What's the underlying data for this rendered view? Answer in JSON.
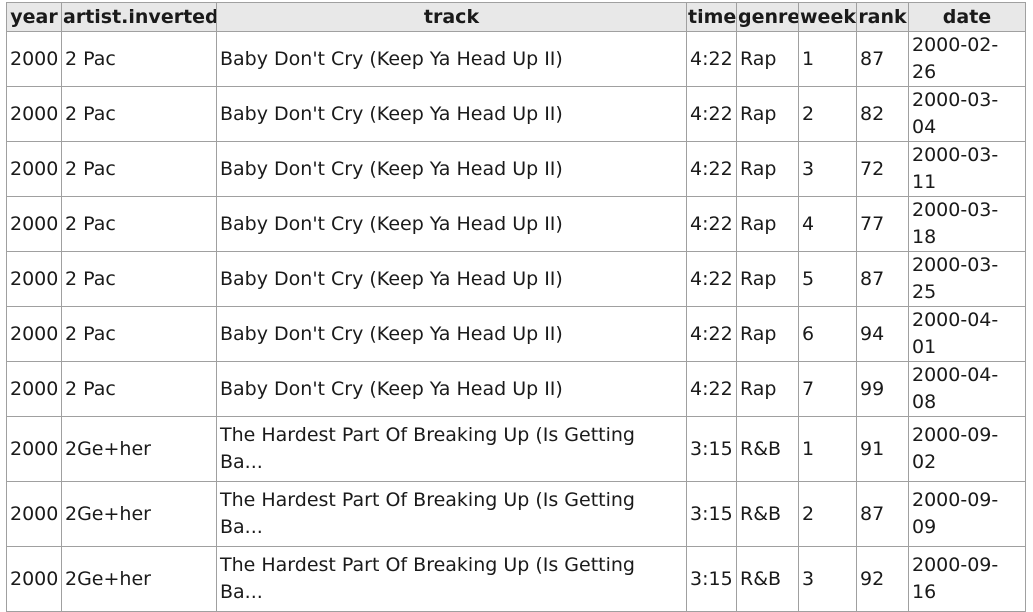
{
  "table": {
    "columns": [
      "year",
      "artist.inverted",
      "track",
      "time",
      "genre",
      "week",
      "rank",
      "date"
    ],
    "rows": [
      [
        "2000",
        "2 Pac",
        "Baby Don't Cry (Keep Ya Head Up II)",
        "4:22",
        "Rap",
        "1",
        "87",
        "2000-02-26"
      ],
      [
        "2000",
        "2 Pac",
        "Baby Don't Cry (Keep Ya Head Up II)",
        "4:22",
        "Rap",
        "2",
        "82",
        "2000-03-04"
      ],
      [
        "2000",
        "2 Pac",
        "Baby Don't Cry (Keep Ya Head Up II)",
        "4:22",
        "Rap",
        "3",
        "72",
        "2000-03-11"
      ],
      [
        "2000",
        "2 Pac",
        "Baby Don't Cry (Keep Ya Head Up II)",
        "4:22",
        "Rap",
        "4",
        "77",
        "2000-03-18"
      ],
      [
        "2000",
        "2 Pac",
        "Baby Don't Cry (Keep Ya Head Up II)",
        "4:22",
        "Rap",
        "5",
        "87",
        "2000-03-25"
      ],
      [
        "2000",
        "2 Pac",
        "Baby Don't Cry (Keep Ya Head Up II)",
        "4:22",
        "Rap",
        "6",
        "94",
        "2000-04-01"
      ],
      [
        "2000",
        "2 Pac",
        "Baby Don't Cry (Keep Ya Head Up II)",
        "4:22",
        "Rap",
        "7",
        "99",
        "2000-04-08"
      ],
      [
        "2000",
        "2Ge+her",
        "The Hardest Part Of Breaking Up (Is Getting Ba...",
        "3:15",
        "R&B",
        "1",
        "91",
        "2000-09-02"
      ],
      [
        "2000",
        "2Ge+her",
        "The Hardest Part Of Breaking Up (Is Getting Ba...",
        "3:15",
        "R&B",
        "2",
        "87",
        "2000-09-09"
      ],
      [
        "2000",
        "2Ge+her",
        "The Hardest Part Of Breaking Up (Is Getting Ba...",
        "3:15",
        "R&B",
        "3",
        "92",
        "2000-09-16"
      ]
    ]
  }
}
